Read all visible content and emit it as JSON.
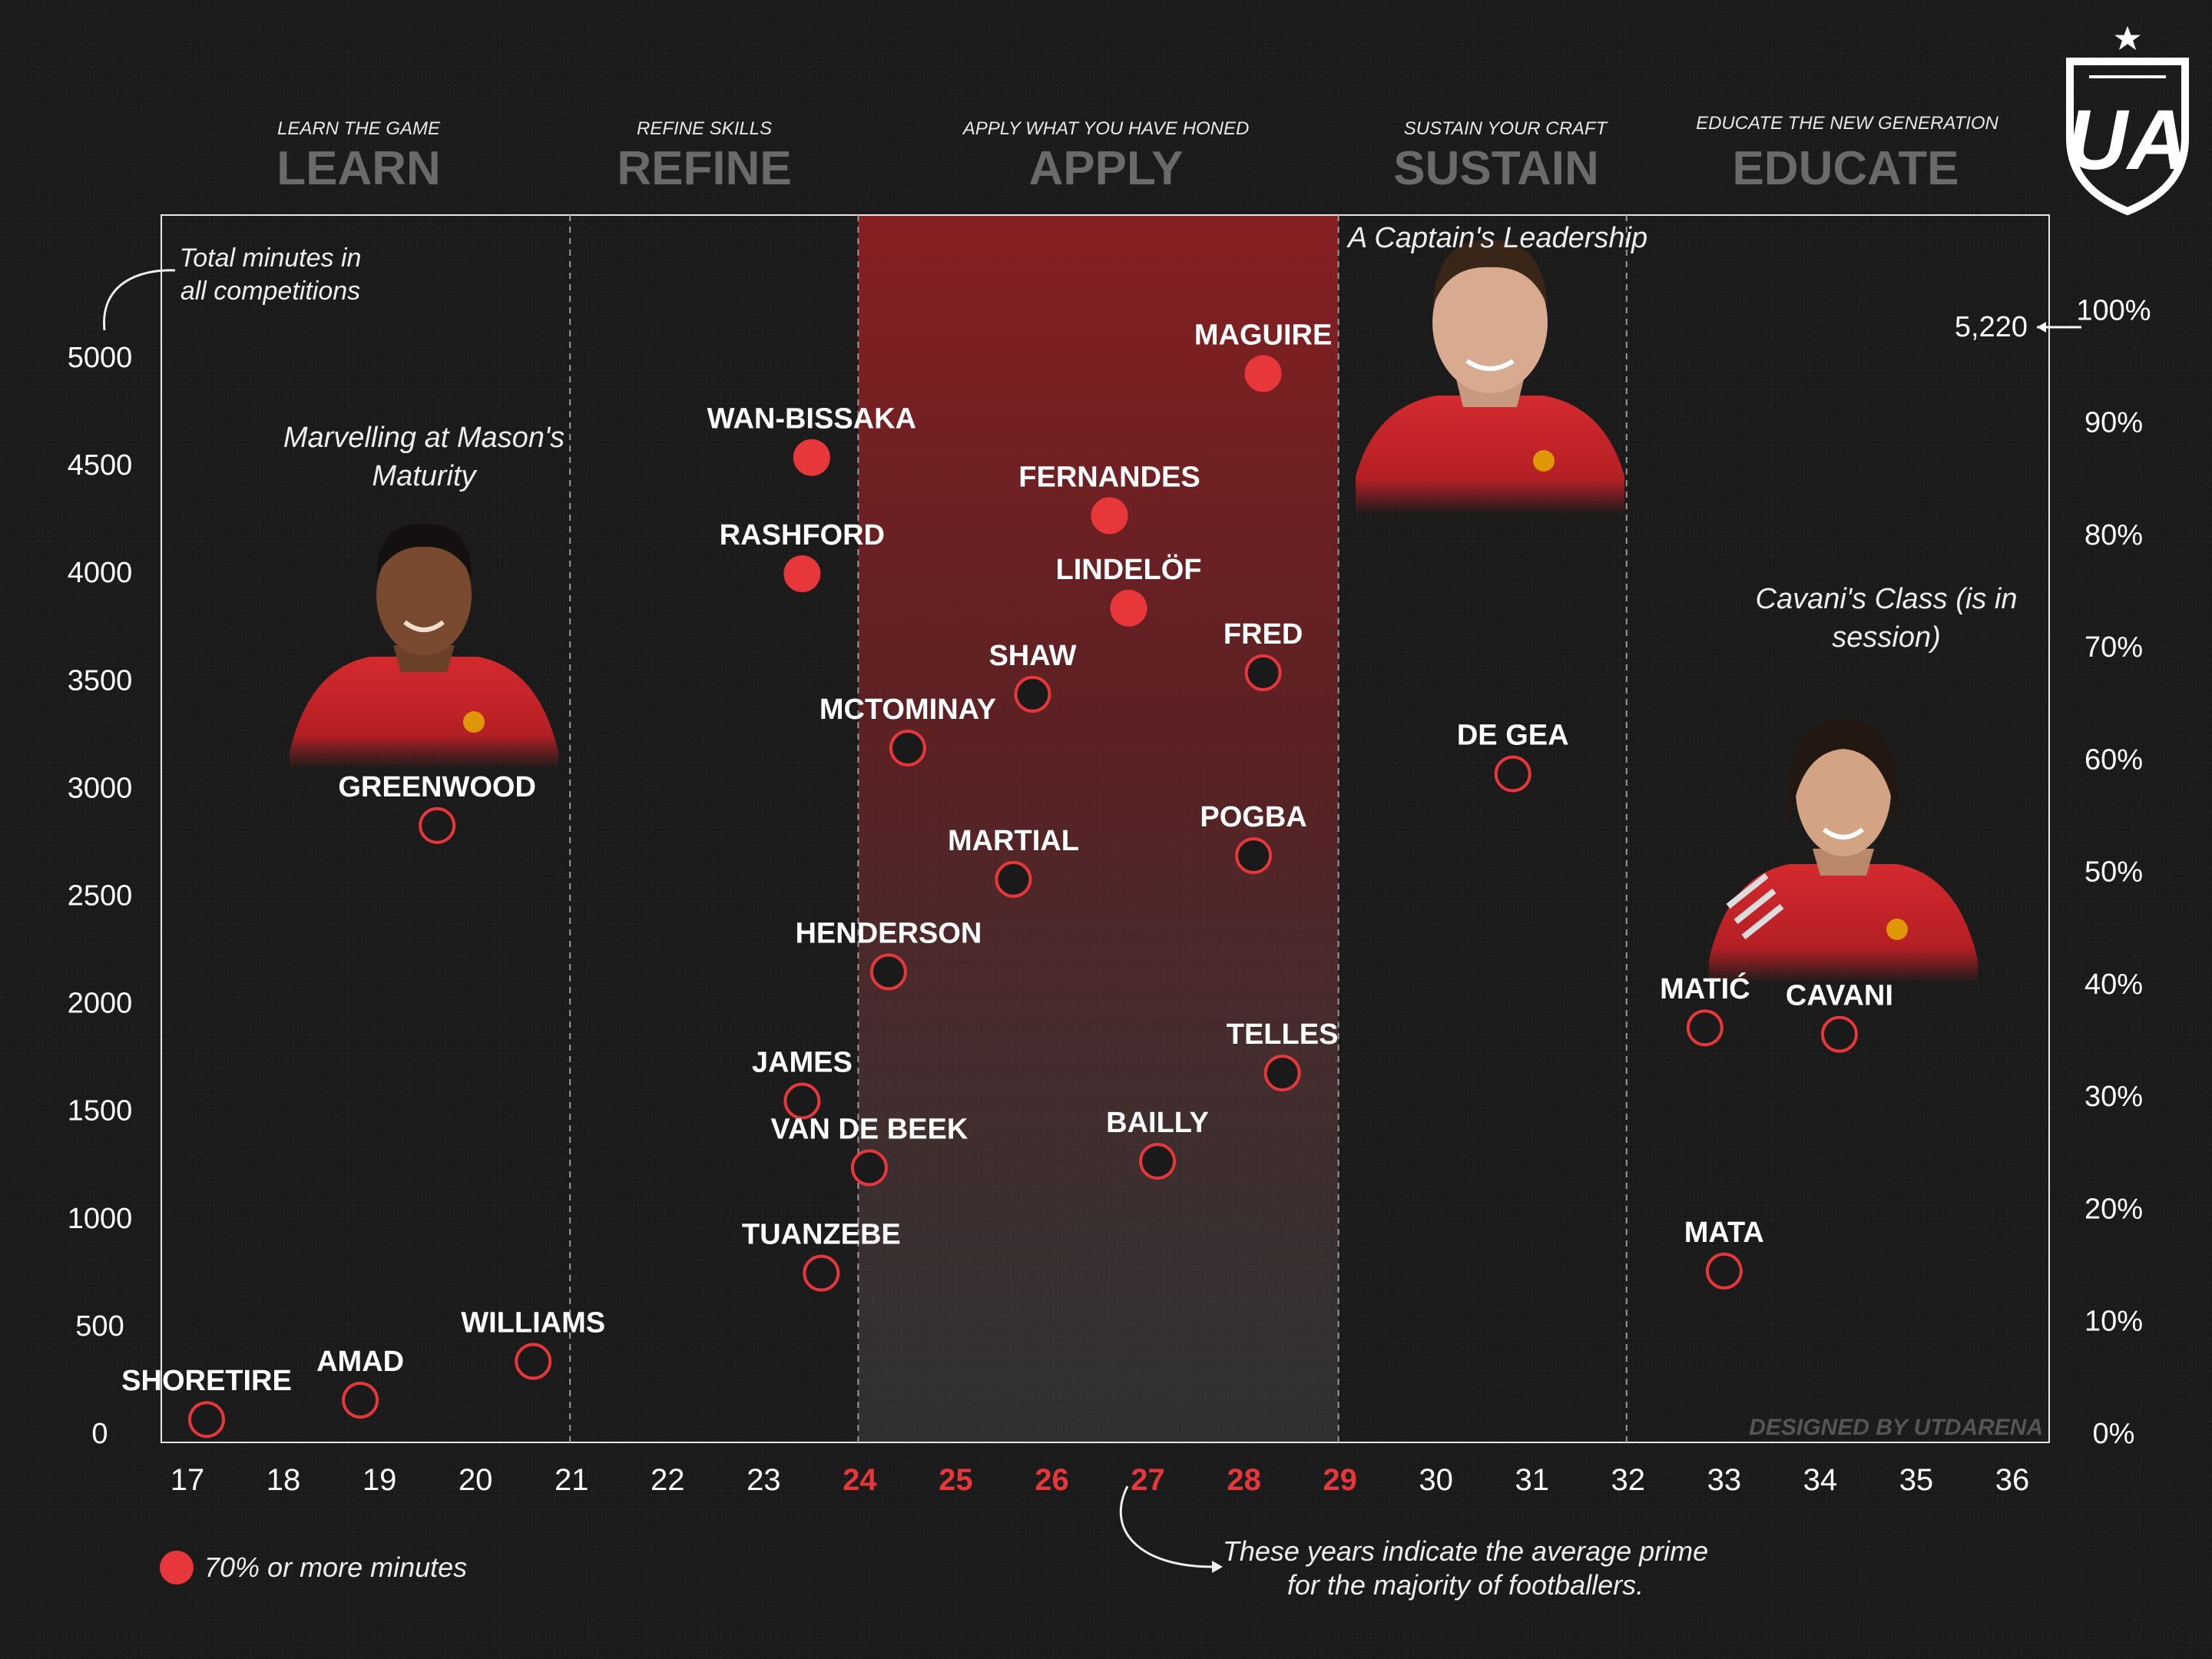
{
  "phases": [
    {
      "subtitle": "LEARN THE GAME",
      "title": "LEARN"
    },
    {
      "subtitle": "REFINE SKILLS",
      "title": "REFINE"
    },
    {
      "subtitle": "APPLY WHAT YOU HAVE HONED",
      "title": "APPLY"
    },
    {
      "subtitle": "SUSTAIN YOUR CRAFT",
      "title": "SUSTAIN"
    },
    {
      "subtitle": "EDUCATE THE NEW GENERATION",
      "title": "EDUCATE"
    }
  ],
  "annotations": {
    "y_axis_note_line1": "Total minutes in",
    "y_axis_note_line2": "all competitions",
    "greenwood_caption_line1": "Marvelling at Mason's",
    "greenwood_caption_line2": "Maturity",
    "maguire_caption": "A Captain's Leadership",
    "cavani_caption_line1": "Cavani's Class (is in",
    "cavani_caption_line2": "session)",
    "max_minutes_label": "5,220",
    "prime_note_line1": "These years indicate the average prime",
    "prime_note_line2": "for the majority of footballers.",
    "credit": "DESIGNED BY UTDARENA",
    "legend_label": "70% or more minutes",
    "logo_text": "UA"
  },
  "colors": {
    "accent": "#e8373a",
    "background": "#1b1b1b",
    "prime_band": "#8c1f22",
    "dark_marker": "#1a1a1a"
  },
  "chart_data": {
    "type": "scatter",
    "xlabel": "",
    "ylabel": "",
    "xlim": [
      16.7,
      36.4
    ],
    "ylim": [
      0,
      5700
    ],
    "x_ticks": [
      17,
      18,
      19,
      20,
      21,
      22,
      23,
      24,
      25,
      26,
      27,
      28,
      29,
      30,
      31,
      32,
      33,
      34,
      35,
      36
    ],
    "x_ticks_highlighted": [
      24,
      25,
      26,
      27,
      28,
      29
    ],
    "y_ticks": [
      0,
      500,
      1000,
      1500,
      2000,
      2500,
      3000,
      3500,
      4000,
      4500,
      5000
    ],
    "y2_ticks": [
      "0%",
      "10%",
      "20%",
      "30%",
      "40%",
      "50%",
      "60%",
      "70%",
      "80%",
      "90%",
      "100%"
    ],
    "y2_max_value": 5220,
    "phase_boundaries": [
      21,
      24,
      29,
      32
    ],
    "prime_range": [
      24,
      29
    ],
    "grid": false,
    "legend_position": "bottom-left",
    "points": [
      {
        "name": "SHORETIRE",
        "age": 17.2,
        "minutes": 60,
        "high": false
      },
      {
        "name": "AMAD",
        "age": 18.8,
        "minutes": 150,
        "high": false
      },
      {
        "name": "WILLIAMS",
        "age": 20.6,
        "minutes": 330,
        "high": false
      },
      {
        "name": "GREENWOOD",
        "age": 19.6,
        "minutes": 2820,
        "high": false
      },
      {
        "name": "WAN-BISSAKA",
        "age": 23.5,
        "minutes": 4530,
        "high": true
      },
      {
        "name": "RASHFORD",
        "age": 23.4,
        "minutes": 3990,
        "high": true
      },
      {
        "name": "JAMES",
        "age": 23.4,
        "minutes": 1540,
        "high": false
      },
      {
        "name": "VAN DE BEEK",
        "age": 24.1,
        "minutes": 1230,
        "high": false
      },
      {
        "name": "TUANZEBE",
        "age": 23.6,
        "minutes": 740,
        "high": false
      },
      {
        "name": "HENDERSON",
        "age": 24.3,
        "minutes": 2140,
        "high": false
      },
      {
        "name": "MCTOMINAY",
        "age": 24.5,
        "minutes": 3180,
        "high": false
      },
      {
        "name": "MARTIAL",
        "age": 25.6,
        "minutes": 2570,
        "high": false
      },
      {
        "name": "SHAW",
        "age": 25.8,
        "minutes": 3430,
        "high": false
      },
      {
        "name": "FERNANDES",
        "age": 26.6,
        "minutes": 4260,
        "high": true
      },
      {
        "name": "LINDELÖF",
        "age": 26.8,
        "minutes": 3830,
        "high": true
      },
      {
        "name": "BAILLY",
        "age": 27.1,
        "minutes": 1260,
        "high": false
      },
      {
        "name": "MAGUIRE",
        "age": 28.2,
        "minutes": 4920,
        "high": true
      },
      {
        "name": "FRED",
        "age": 28.2,
        "minutes": 3530,
        "high": false
      },
      {
        "name": "POGBA",
        "age": 28.1,
        "minutes": 2680,
        "high": false
      },
      {
        "name": "TELLES",
        "age": 28.4,
        "minutes": 1670,
        "high": false
      },
      {
        "name": "DE GEA",
        "age": 30.8,
        "minutes": 3060,
        "high": false
      },
      {
        "name": "MATIĆ",
        "age": 32.8,
        "minutes": 1880,
        "high": false
      },
      {
        "name": "CAVANI",
        "age": 34.2,
        "minutes": 1850,
        "high": false
      },
      {
        "name": "MATA",
        "age": 33.0,
        "minutes": 750,
        "high": false
      }
    ]
  }
}
